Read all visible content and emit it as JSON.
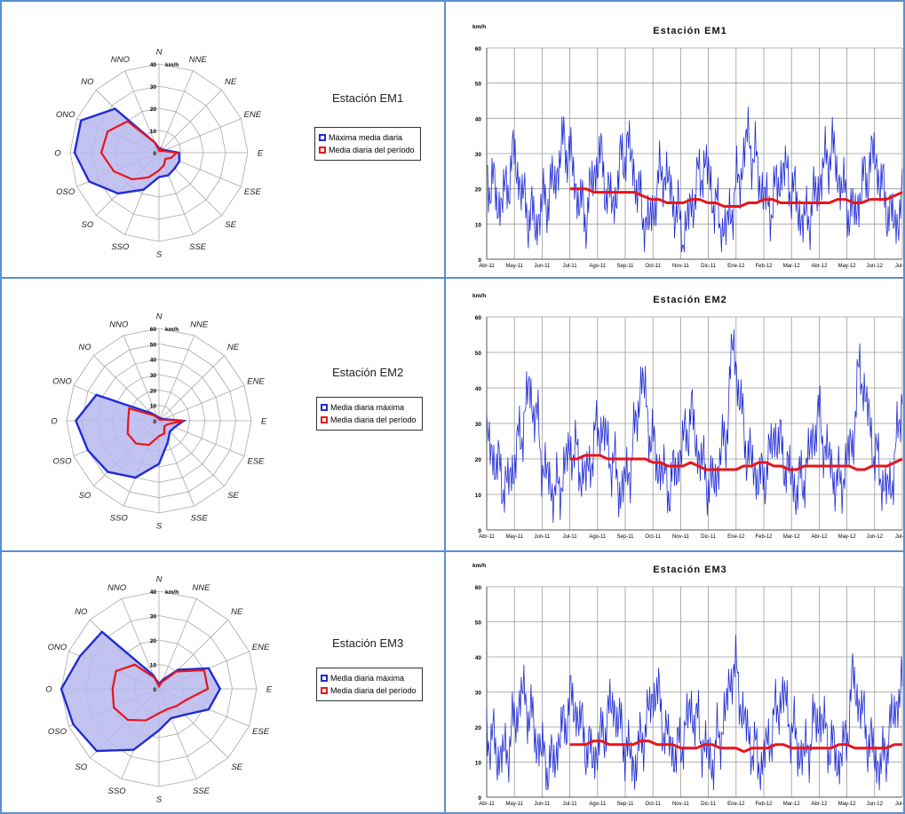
{
  "directions": [
    "N",
    "NNE",
    "NE",
    "ENE",
    "E",
    "ESE",
    "SE",
    "SSE",
    "S",
    "SSO",
    "SO",
    "OSO",
    "O",
    "ONO",
    "NO",
    "NNO"
  ],
  "colors": {
    "max": "#1f2bd6",
    "mean": "#e8151b",
    "fill": "#b8b8ee",
    "grid": "#a9a9a9",
    "border": "#5b8fd0"
  },
  "panels": [
    {
      "station_title": "Estación EM1",
      "legend": {
        "max_label": "Máxima media diaria",
        "mean_label": "Media diaria del período"
      },
      "radar": {
        "max": 40,
        "unit": "km/h",
        "ticks": [
          "0",
          "10",
          "20",
          "30",
          "40"
        ]
      },
      "line_title": "Estación EM1"
    },
    {
      "station_title": "Estación EM2",
      "legend": {
        "max_label": "Media diaria máxima",
        "mean_label": "Media diaria del período"
      },
      "radar": {
        "max": 60,
        "unit": "km/h",
        "ticks": [
          "0",
          "10",
          "20",
          "30",
          "40",
          "50",
          "60"
        ]
      },
      "line_title": "Estación EM2"
    },
    {
      "station_title": "Estación EM3",
      "legend": {
        "max_label": "Media diaria máxima",
        "mean_label": "Media diaria del período"
      },
      "radar": {
        "max": 40,
        "unit": "km/h",
        "ticks": [
          "0",
          "10",
          "20",
          "30",
          "40"
        ]
      },
      "line_title": "Estación EM3"
    }
  ],
  "line_axis": {
    "unit": "km/h",
    "yticks": [
      "0",
      "10",
      "20",
      "30",
      "40",
      "50",
      "60"
    ],
    "months": [
      "Abr-11",
      "May-11",
      "Jun-11",
      "Jul-11",
      "Ago-11",
      "Sep-11",
      "Oct-11",
      "Nov-11",
      "Dic-11",
      "Ene-12",
      "Feb-12",
      "Mar-12",
      "Abr-12",
      "May-12",
      "Jun-12",
      "Jul-12"
    ]
  },
  "chart_data": [
    {
      "type": "radar",
      "title": "",
      "unit": "km/h",
      "rmax": 40,
      "categories": [
        "N",
        "NNE",
        "NE",
        "ENE",
        "E",
        "ESE",
        "SE",
        "SSE",
        "S",
        "SSO",
        "SO",
        "OSO",
        "O",
        "ONO",
        "NO",
        "NNO"
      ],
      "series": [
        {
          "name": "Máxima media diaria",
          "values": [
            2,
            2,
            2,
            3,
            9,
            10,
            10,
            11,
            11,
            18,
            26,
            34,
            38,
            38,
            28,
            5
          ]
        },
        {
          "name": "Media diaria del período",
          "values": [
            1,
            2,
            1,
            2,
            8,
            6,
            4,
            6,
            8,
            12,
            17,
            22,
            26,
            25,
            20,
            5
          ]
        }
      ]
    },
    {
      "type": "radar",
      "title": "",
      "unit": "km/h",
      "rmax": 60,
      "categories": [
        "N",
        "NNE",
        "NE",
        "ENE",
        "E",
        "ESE",
        "SE",
        "SSE",
        "S",
        "SSO",
        "SO",
        "OSO",
        "O",
        "ONO",
        "NO",
        "NNO"
      ],
      "series": [
        {
          "name": "Media diaria máxima",
          "values": [
            2,
            2,
            2,
            3,
            16,
            11,
            10,
            15,
            28,
            40,
            47,
            50,
            54,
            44,
            7,
            3
          ]
        },
        {
          "name": "Media diaria del período",
          "values": [
            1,
            1,
            1,
            2,
            16,
            6,
            5,
            9,
            10,
            17,
            21,
            22,
            20,
            21,
            5,
            2
          ]
        }
      ]
    },
    {
      "type": "radar",
      "title": "",
      "unit": "km/h",
      "rmax": 40,
      "categories": [
        "N",
        "NNE",
        "NE",
        "ENE",
        "E",
        "ESE",
        "SE",
        "SSE",
        "S",
        "SSO",
        "SO",
        "OSO",
        "O",
        "ONO",
        "NO",
        "NNO"
      ],
      "series": [
        {
          "name": "Media diaria máxima",
          "values": [
            2,
            4,
            11,
            22,
            25,
            22,
            15,
            13,
            17,
            27,
            36,
            38,
            40,
            35,
            33,
            6
          ]
        },
        {
          "name": "Media diaria del período",
          "values": [
            1,
            3,
            10,
            20,
            20,
            12,
            10,
            9,
            10,
            14,
            18,
            20,
            19,
            19,
            14,
            5
          ]
        }
      ]
    },
    {
      "type": "line",
      "title": "Estación EM1",
      "ylabel": "km/h",
      "ylim": [
        0,
        60
      ],
      "x_range": [
        "Abr-11",
        "Jul-12"
      ],
      "series": [
        {
          "name": "daily",
          "values": [
            24,
            20,
            15,
            22,
            30,
            18,
            13,
            10,
            16,
            19,
            25,
            34,
            28,
            17,
            12,
            22,
            30,
            20,
            15,
            27,
            33,
            24,
            14,
            9,
            18,
            26,
            20,
            13,
            6,
            15,
            22,
            28,
            19,
            11,
            8,
            17,
            24,
            35,
            29,
            21,
            14,
            19,
            26,
            22,
            16,
            10,
            14,
            20,
            27,
            32,
            23,
            17,
            12,
            18,
            25,
            30,
            21,
            14,
            10,
            16
          ]
        },
        {
          "name": "mean",
          "values": [
            20,
            20,
            20,
            19,
            19,
            19,
            19,
            19,
            19,
            18,
            17,
            17,
            16,
            16,
            16,
            17,
            17,
            16,
            16,
            15,
            15,
            15,
            16,
            16,
            17,
            17,
            16,
            16,
            16,
            16,
            16,
            16,
            16,
            17,
            17,
            16,
            16,
            17,
            17,
            17,
            18,
            19
          ]
        }
      ]
    },
    {
      "type": "line",
      "title": "Estación EM2",
      "ylabel": "km/h",
      "ylim": [
        0,
        60
      ],
      "x_range": [
        "Abr-11",
        "Jul-12"
      ],
      "series": [
        {
          "name": "daily",
          "values": [
            25,
            21,
            15,
            12,
            20,
            28,
            40,
            32,
            18,
            13,
            10,
            17,
            24,
            19,
            14,
            22,
            30,
            25,
            18,
            11,
            15,
            26,
            44,
            30,
            20,
            16,
            12,
            18,
            25,
            33,
            22,
            16,
            12,
            19,
            27,
            54,
            35,
            22,
            17,
            13,
            20,
            28,
            21,
            16,
            11,
            15,
            23,
            32,
            24,
            17,
            12,
            18,
            26,
            47,
            34,
            22,
            15,
            10,
            20,
            39
          ]
        },
        {
          "name": "mean",
          "values": [
            20,
            20,
            21,
            21,
            21,
            20,
            20,
            20,
            20,
            20,
            20,
            19,
            19,
            18,
            18,
            18,
            19,
            18,
            17,
            17,
            17,
            17,
            17,
            18,
            18,
            19,
            19,
            18,
            18,
            17,
            17,
            18,
            18,
            18,
            18,
            18,
            18,
            18,
            17,
            17,
            18,
            18,
            18,
            19,
            20
          ]
        }
      ]
    },
    {
      "type": "line",
      "title": "Estación EM3",
      "ylabel": "km/h",
      "ylim": [
        0,
        60
      ],
      "x_range": [
        "Abr-11",
        "Jul-12"
      ],
      "series": [
        {
          "name": "daily",
          "values": [
            19,
            15,
            11,
            14,
            22,
            30,
            25,
            17,
            12,
            8,
            14,
            21,
            28,
            23,
            16,
            11,
            15,
            22,
            27,
            19,
            13,
            9,
            16,
            24,
            32,
            21,
            15,
            12,
            18,
            26,
            20,
            14,
            10,
            17,
            25,
            39,
            28,
            18,
            13,
            9,
            16,
            23,
            30,
            22,
            15,
            11,
            17,
            24,
            19,
            14,
            10,
            16,
            34,
            26,
            18,
            12,
            8,
            17,
            26,
            31
          ]
        },
        {
          "name": "mean",
          "values": [
            15,
            15,
            15,
            16,
            16,
            15,
            15,
            15,
            15,
            16,
            16,
            15,
            15,
            15,
            14,
            14,
            14,
            15,
            15,
            14,
            14,
            14,
            13,
            14,
            14,
            14,
            15,
            15,
            14,
            14,
            14,
            14,
            14,
            14,
            15,
            15,
            14,
            14,
            14,
            14,
            14,
            15,
            15
          ]
        }
      ]
    }
  ]
}
